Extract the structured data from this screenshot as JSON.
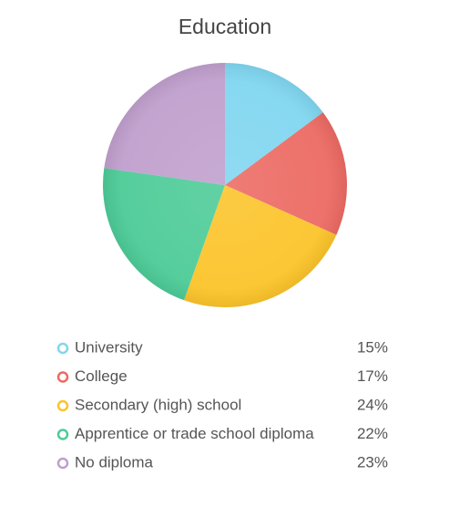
{
  "chart_data": {
    "type": "pie",
    "title": "Education",
    "categories": [
      "University",
      "College",
      "Secondary (high) school",
      "Apprentice or trade school diploma",
      "No diploma"
    ],
    "values": [
      15,
      17,
      24,
      22,
      23
    ],
    "value_labels": [
      "15%",
      "17%",
      "24%",
      "22%",
      "23%"
    ],
    "colors": [
      "#80d6f0",
      "#ec6a63",
      "#fcc42a",
      "#4dcb97",
      "#c09fcd"
    ]
  }
}
